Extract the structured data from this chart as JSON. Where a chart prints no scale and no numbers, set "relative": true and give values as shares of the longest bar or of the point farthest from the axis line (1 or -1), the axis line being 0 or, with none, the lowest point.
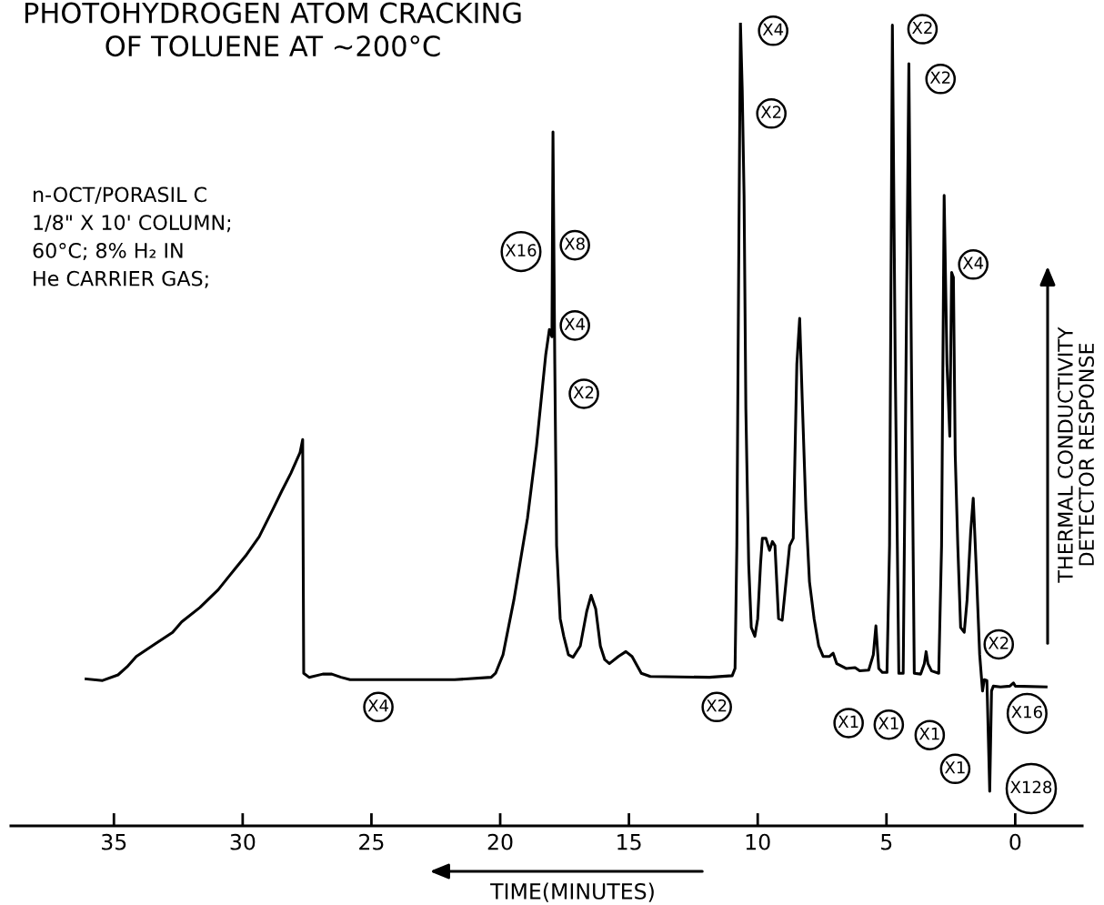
{
  "chart_data": {
    "type": "line",
    "relative": true,
    "title": "PHOTOHYDROGEN ATOM CRACKING\nOF TOLUENE AT ~200°C",
    "xlabel": "TIME(MINUTES)",
    "y2label": "THERMAL CONDUCTIVITY\nDETECTOR RESPONSE",
    "xlim": [
      39,
      -2.6
    ],
    "xticks": [
      35,
      30,
      25,
      20,
      15,
      10,
      5,
      0
    ],
    "series": [
      {
        "color": "#000000",
        "x": [
          36.08,
          35.44,
          34.84,
          34.49,
          34.13,
          33.43,
          32.72,
          32.37,
          31.66,
          30.95,
          30.25,
          29.89,
          29.36,
          28.83,
          28.48,
          28.13,
          27.77,
          27.67,
          27.63,
          27.42,
          26.89,
          26.54,
          26.18,
          25.83,
          25.3,
          21.77,
          20.35,
          20.18,
          19.89,
          19.47,
          18.94,
          18.59,
          18.23,
          18.09,
          17.99,
          17.95,
          17.88,
          17.81,
          17.67,
          17.53,
          17.35,
          17.17,
          16.89,
          16.64,
          16.47,
          16.29,
          16.11,
          15.94,
          15.76,
          15.41,
          15.12,
          14.88,
          14.52,
          14.17,
          11.87,
          10.99,
          10.88,
          10.81,
          10.74,
          10.67,
          10.6,
          10.53,
          10.46,
          10.35,
          10.25,
          10.11,
          10.0,
          9.89,
          9.82,
          9.68,
          9.54,
          9.43,
          9.33,
          9.19,
          9.05,
          8.9,
          8.76,
          8.62,
          8.48,
          8.37,
          8.27,
          8.13,
          7.99,
          7.81,
          7.63,
          7.46,
          7.21,
          7.07,
          6.93,
          6.57,
          6.22,
          6.04,
          5.69,
          5.51,
          5.41,
          5.3,
          5.16,
          4.98,
          4.88,
          4.77,
          4.66,
          4.52,
          4.35,
          4.24,
          4.13,
          4.03,
          3.92,
          3.67,
          3.53,
          3.46,
          3.39,
          3.25,
          2.97,
          2.86,
          2.76,
          2.65,
          2.54,
          2.47,
          2.4,
          2.33,
          2.23,
          2.12,
          1.98,
          1.87,
          1.73,
          1.63,
          1.52,
          1.38,
          1.27,
          1.2,
          1.1,
          0.99,
          0.92,
          0.85,
          0.57,
          0.21,
          0.07,
          0,
          -1.2
        ],
        "values": [
          0.183,
          0.181,
          0.188,
          0.198,
          0.211,
          0.226,
          0.241,
          0.254,
          0.272,
          0.294,
          0.322,
          0.336,
          0.36,
          0.394,
          0.417,
          0.439,
          0.465,
          0.481,
          0.19,
          0.185,
          0.189,
          0.189,
          0.185,
          0.182,
          0.182,
          0.182,
          0.185,
          0.19,
          0.213,
          0.281,
          0.383,
          0.473,
          0.587,
          0.618,
          0.609,
          0.864,
          0.575,
          0.349,
          0.258,
          0.236,
          0.213,
          0.21,
          0.224,
          0.267,
          0.287,
          0.27,
          0.224,
          0.207,
          0.202,
          0.211,
          0.217,
          0.211,
          0.19,
          0.186,
          0.185,
          0.187,
          0.196,
          0.349,
          0.689,
          1.0,
          0.915,
          0.785,
          0.519,
          0.326,
          0.247,
          0.236,
          0.258,
          0.326,
          0.358,
          0.358,
          0.343,
          0.354,
          0.349,
          0.258,
          0.256,
          0.304,
          0.349,
          0.358,
          0.575,
          0.632,
          0.53,
          0.394,
          0.304,
          0.258,
          0.224,
          0.211,
          0.211,
          0.215,
          0.202,
          0.196,
          0.197,
          0.193,
          0.194,
          0.213,
          0.249,
          0.196,
          0.191,
          0.191,
          0.349,
          0.997,
          0.575,
          0.19,
          0.19,
          0.575,
          0.949,
          0.575,
          0.19,
          0.189,
          0.202,
          0.217,
          0.202,
          0.193,
          0.19,
          0.349,
          0.785,
          0.575,
          0.485,
          0.689,
          0.683,
          0.462,
          0.349,
          0.247,
          0.241,
          0.281,
          0.366,
          0.408,
          0.326,
          0.213,
          0.168,
          0.182,
          0.181,
          0.043,
          0.168,
          0.174,
          0.173,
          0.174,
          0.178,
          0.174,
          0.173
        ]
      }
    ],
    "annotations": [
      "n-OCT/PORASIL C\n1/8\" X 10' COLUMN;\n60°C; 8% H₂ IN\nHe CARRIER GAS;",
      {
        "text": "X16",
        "x": 19.19,
        "y": 0.715
      },
      {
        "text": "X8",
        "x": 17.1,
        "y": 0.723
      },
      {
        "text": "X4",
        "x": 17.1,
        "y": 0.623
      },
      {
        "text": "X2",
        "x": 16.75,
        "y": 0.538
      },
      {
        "text": "X4",
        "x": 9.4,
        "y": 0.99
      },
      {
        "text": "X2",
        "x": 9.47,
        "y": 0.887
      },
      {
        "text": "X2",
        "x": 3.6,
        "y": 0.992
      },
      {
        "text": "X2",
        "x": 2.9,
        "y": 0.93
      },
      {
        "text": "X4",
        "x": 1.63,
        "y": 0.699
      },
      {
        "text": "X4",
        "x": 24.73,
        "y": 0.148
      },
      {
        "text": "X2",
        "x": 11.59,
        "y": 0.148
      },
      {
        "text": "X1",
        "x": 6.47,
        "y": 0.128
      },
      {
        "text": "X1",
        "x": 4.91,
        "y": 0.126
      },
      {
        "text": "X1",
        "x": 3.32,
        "y": 0.113
      },
      {
        "text": "X1",
        "x": 2.33,
        "y": 0.071
      },
      {
        "text": "X2",
        "x": 0.64,
        "y": 0.226
      },
      {
        "text": "X16",
        "x": -0.46,
        "y": 0.14
      },
      "X128"
    ]
  }
}
